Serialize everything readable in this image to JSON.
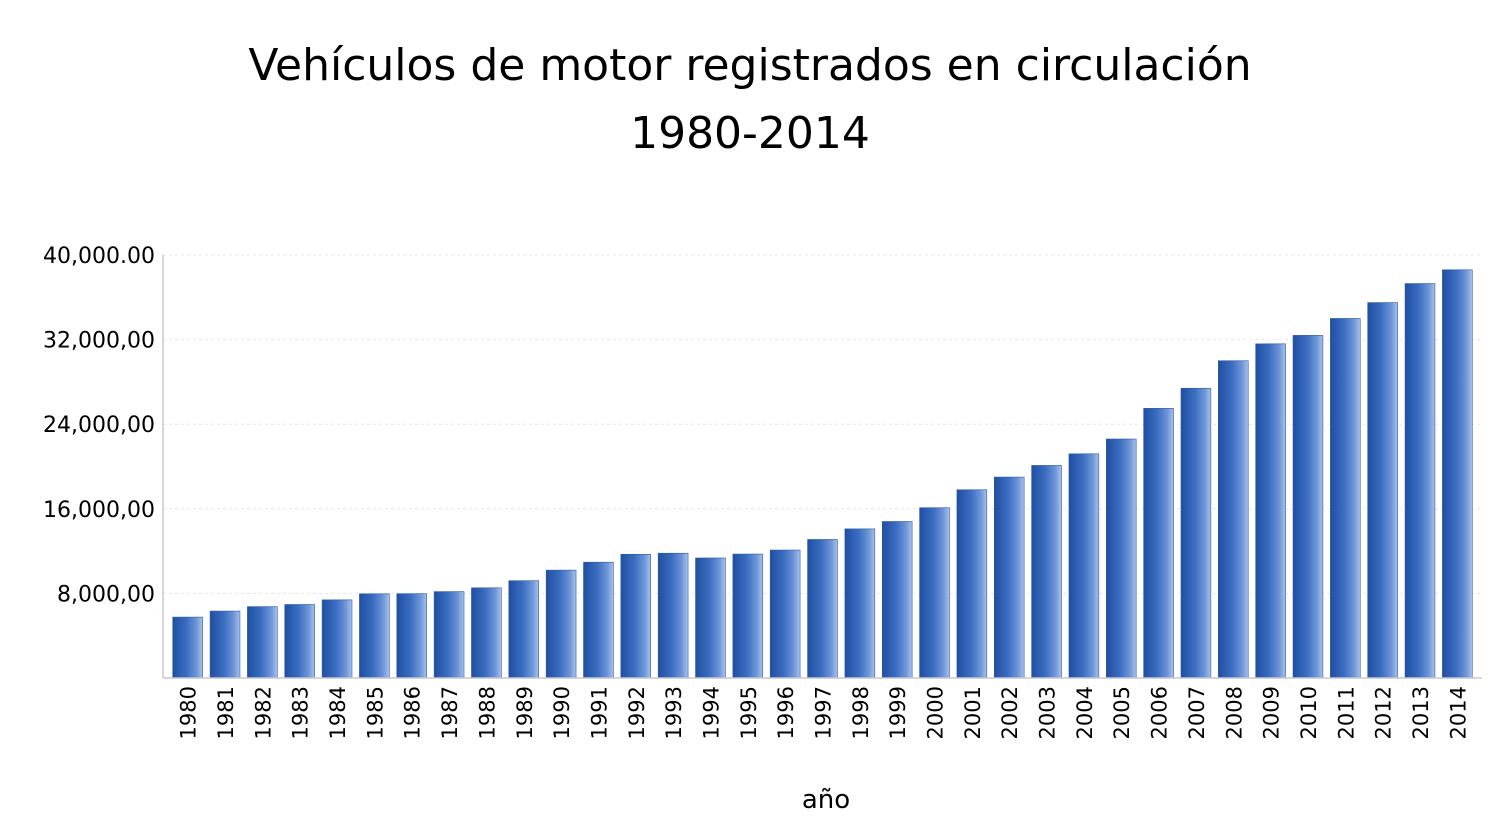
{
  "chart_data": {
    "type": "bar",
    "title": [
      "Vehículos de motor registrados en circulación",
      "1980-2014"
    ],
    "xlabel": "año",
    "ylabel": "",
    "ylim": [
      0,
      40000
    ],
    "yticks": [
      8000,
      16000,
      24000,
      32000,
      40000
    ],
    "ytick_labels": [
      "8,000,00",
      "16,000,00",
      "24,000,00",
      "32,000,00",
      "40,000.00"
    ],
    "grid": true,
    "bar_color": "#3a6cc0",
    "categories": [
      "1980",
      "1981",
      "1982",
      "1983",
      "1984",
      "1985",
      "1986",
      "1987",
      "1988",
      "1989",
      "1990",
      "1991",
      "1992",
      "1993",
      "1994",
      "1995",
      "1996",
      "1997",
      "1998",
      "1999",
      "2000",
      "2001",
      "2002",
      "2003",
      "2004",
      "2005",
      "2006",
      "2007",
      "2008",
      "2009",
      "2010",
      "2011",
      "2012",
      "2013",
      "2014"
    ],
    "values": [
      5760,
      6330,
      6750,
      6950,
      7390,
      7960,
      7970,
      8170,
      8530,
      9200,
      10200,
      10950,
      11700,
      11800,
      11350,
      11720,
      12100,
      13100,
      14100,
      14800,
      16100,
      17800,
      19000,
      20100,
      21200,
      22600,
      25500,
      27400,
      30000,
      31600,
      32400,
      34000,
      35500,
      37300,
      38600
    ]
  }
}
